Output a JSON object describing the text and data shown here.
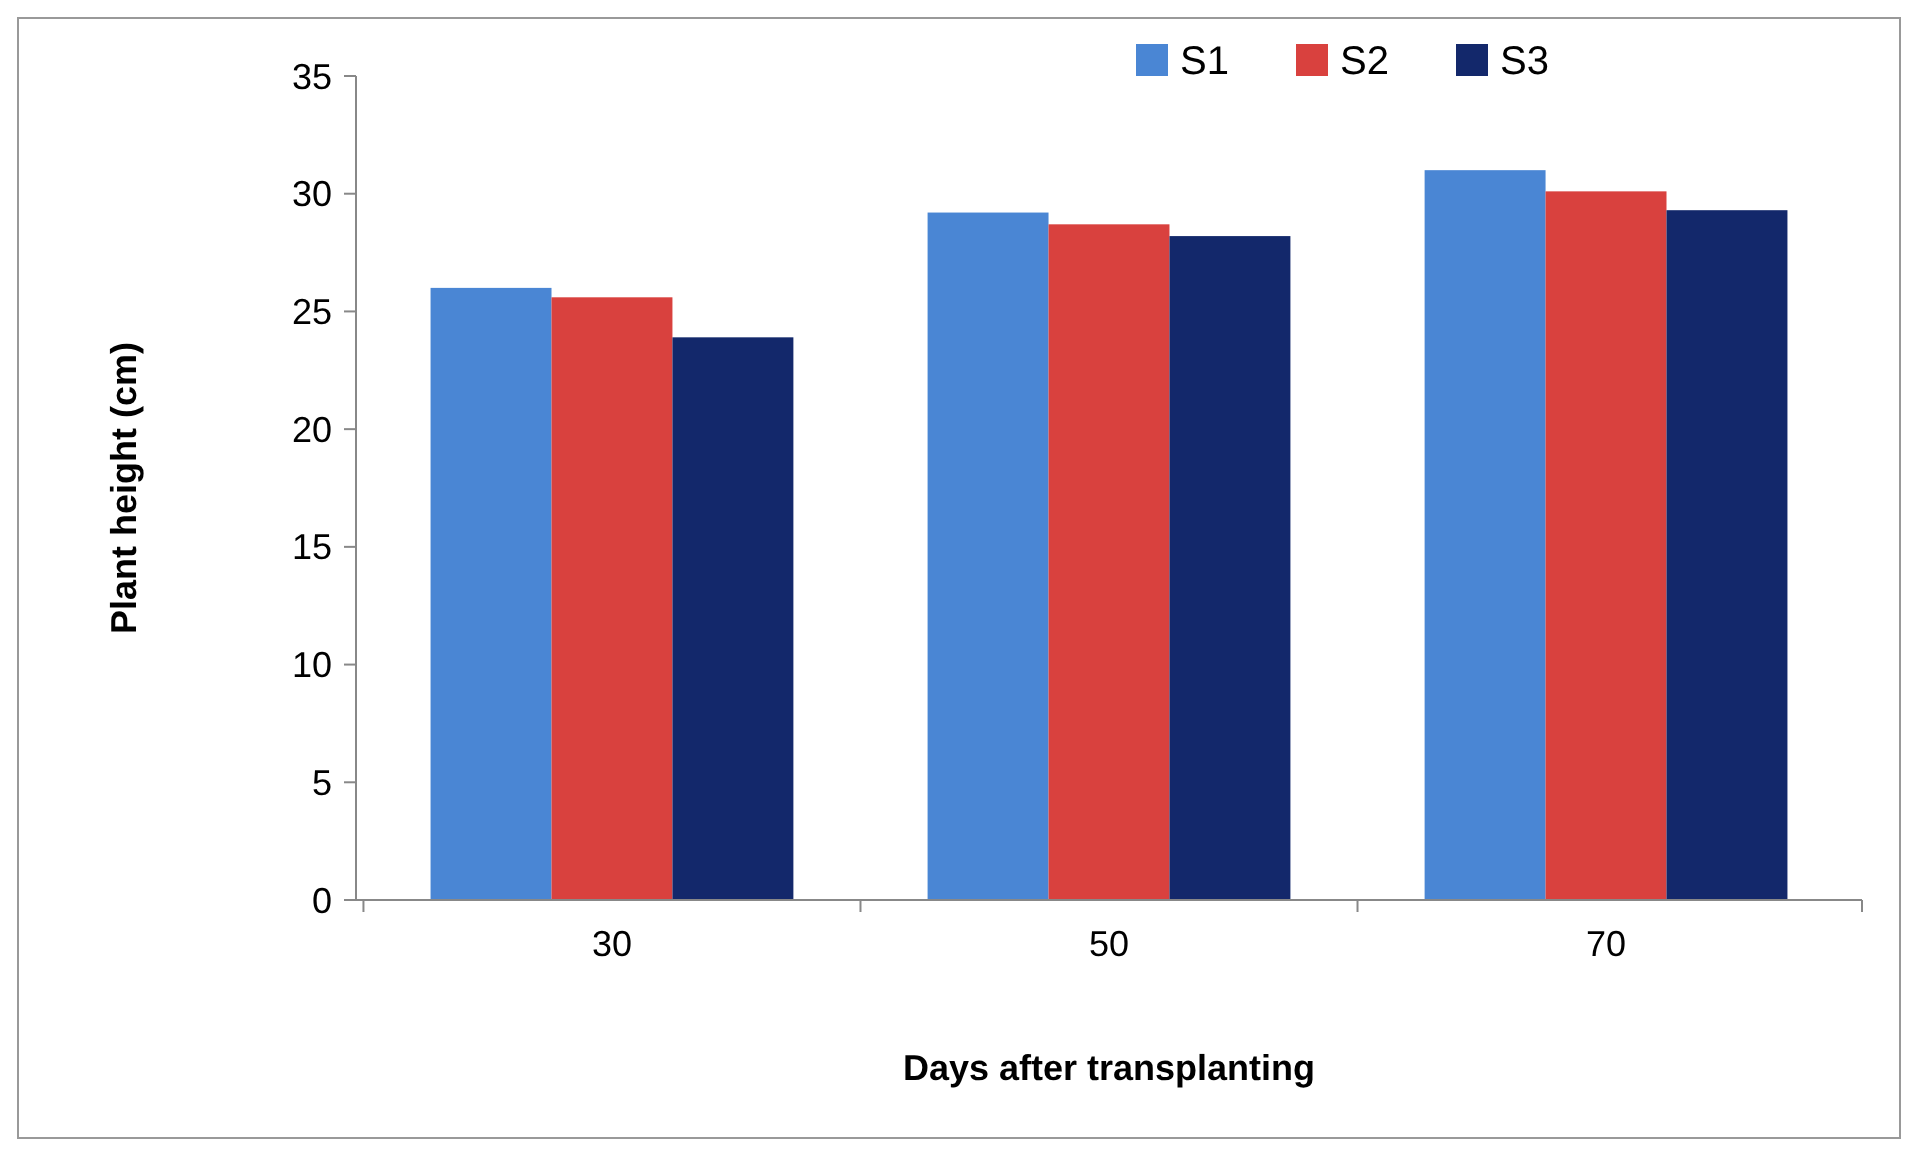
{
  "chart_data": {
    "type": "bar",
    "xlabel": "Days after transplanting",
    "ylabel": "Plant height (cm)",
    "categories": [
      "30",
      "50",
      "70"
    ],
    "series": [
      {
        "name": "S1",
        "color": "#4a86d4",
        "values": [
          26.0,
          29.2,
          31.0
        ]
      },
      {
        "name": "S2",
        "color": "#d9413e",
        "values": [
          25.6,
          28.7,
          30.1
        ]
      },
      {
        "name": "S3",
        "color": "#13286b",
        "values": [
          23.9,
          28.2,
          29.3
        ]
      }
    ],
    "ylim": [
      0,
      35
    ],
    "yticks": [
      0,
      5,
      10,
      15,
      20,
      25,
      30,
      35
    ],
    "grid": false,
    "legend": "top"
  }
}
